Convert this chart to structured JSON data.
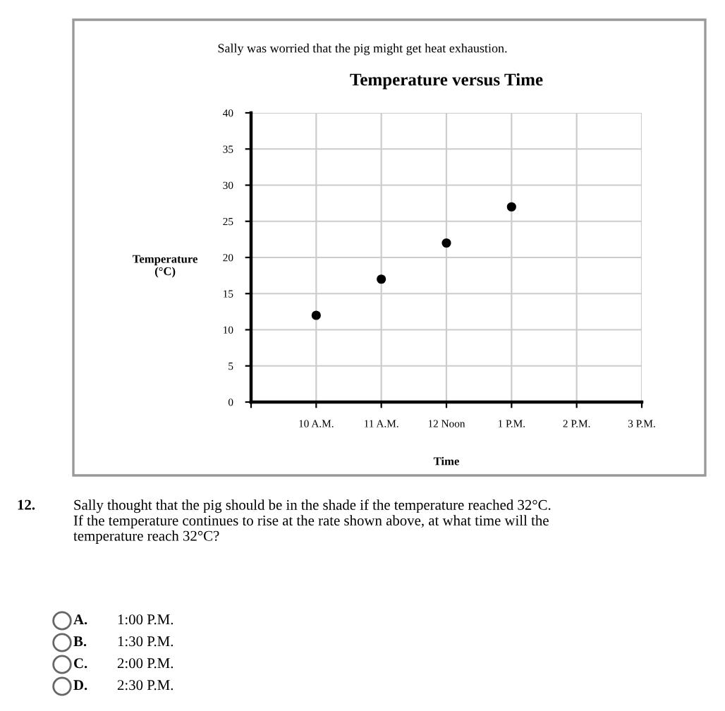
{
  "chart_data": {
    "type": "scatter",
    "subtitle": "Sally was worried that the pig might get heat exhaustion.",
    "title": "Temperature versus Time",
    "xlabel": "Time",
    "ylabel": "Temperature\n(°C)",
    "categories": [
      null,
      "10 A.M.",
      "11 A.M.",
      "12 Noon",
      "1 P.M.",
      "2 P.M.",
      "3 P.M."
    ],
    "series": [
      {
        "color": "#000000",
        "values": [
          null,
          12,
          17,
          22,
          27,
          null,
          null
        ]
      }
    ],
    "ylim": [
      0,
      40
    ],
    "yticks": [
      0,
      5,
      10,
      15,
      20,
      25,
      30,
      35,
      40
    ],
    "grid": true,
    "marker": "circle",
    "annotations": [
      "12.",
      "Sally thought that the pig should be in the shade if the temperature reached 32°C.\nIf the temperature continues to rise at the rate shown above, at what time will the\ntemperature reach 32°C?",
      "A.",
      "1:00 P.M.",
      "B.",
      "1:30 P.M.",
      "C.",
      "2:00 P.M.",
      "D.",
      "2:30 P.M."
    ]
  }
}
